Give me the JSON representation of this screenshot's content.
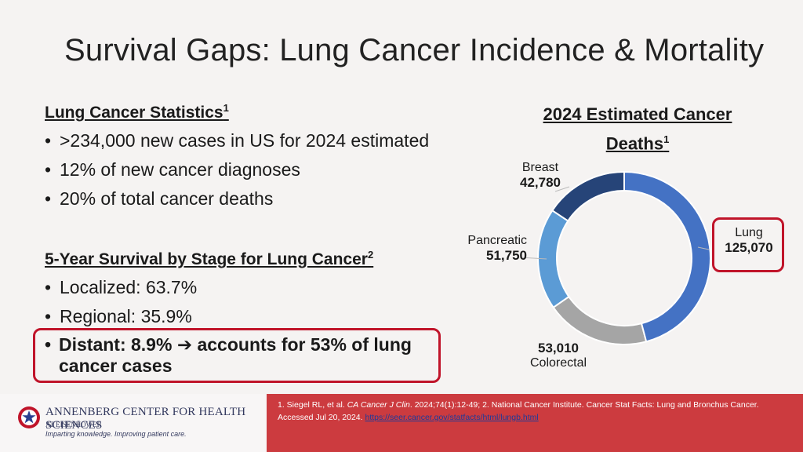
{
  "title": "Survival Gaps: Lung Cancer Incidence & Mortality",
  "stats": {
    "heading": "Lung Cancer Statistics",
    "heading_sup": "1",
    "items": [
      ">234,000 new cases in US for 2024 estimated",
      "12% of new cancer diagnoses",
      "20% of total cancer deaths"
    ]
  },
  "survival": {
    "heading": "5-Year Survival by Stage for Lung Cancer",
    "heading_sup": "2",
    "items": [
      "Localized: 63.7%",
      "Regional: 35.9%"
    ],
    "distant": "Distant: 8.9% ➔ accounts for 53% of lung cancer cases"
  },
  "chart_data": {
    "type": "pie",
    "title": "2024 Estimated Cancer Deaths",
    "title_sup": "1",
    "donut": true,
    "slices": [
      {
        "label": "Lung",
        "value": 125070,
        "value_text": "125,070",
        "color": "#4472c4"
      },
      {
        "label": "Colorectal",
        "value": 53010,
        "value_text": "53,010",
        "color": "#a5a5a5"
      },
      {
        "label": "Pancreatic",
        "value": 51750,
        "value_text": "51,750",
        "color": "#5b9bd5"
      },
      {
        "label": "Breast",
        "value": 42780,
        "value_text": "42,780",
        "color": "#264478"
      }
    ]
  },
  "footer": {
    "logo_name": "ANNENBERG CENTER FOR HEALTH SCIENCES",
    "logo_sub": "AT EISENHOWER",
    "logo_tag": "Imparting knowledge. Improving patient care.",
    "ref_1a": "1. Siegel RL, et al. ",
    "ref_1b": "CA Cancer J Clin",
    "ref_1c": ". 2024;74(1):12-49; 2.  National Cancer Institute. Cancer Stat Facts: Lung and Bronchus Cancer.",
    "ref_2a": "Accessed Jul 20, 2024. ",
    "ref_link": "https://seer.cancer.gov/statfacts/html/lungb.html"
  },
  "colors": {
    "accent_red": "#c0142a",
    "footer_red": "#cc3b3f"
  }
}
